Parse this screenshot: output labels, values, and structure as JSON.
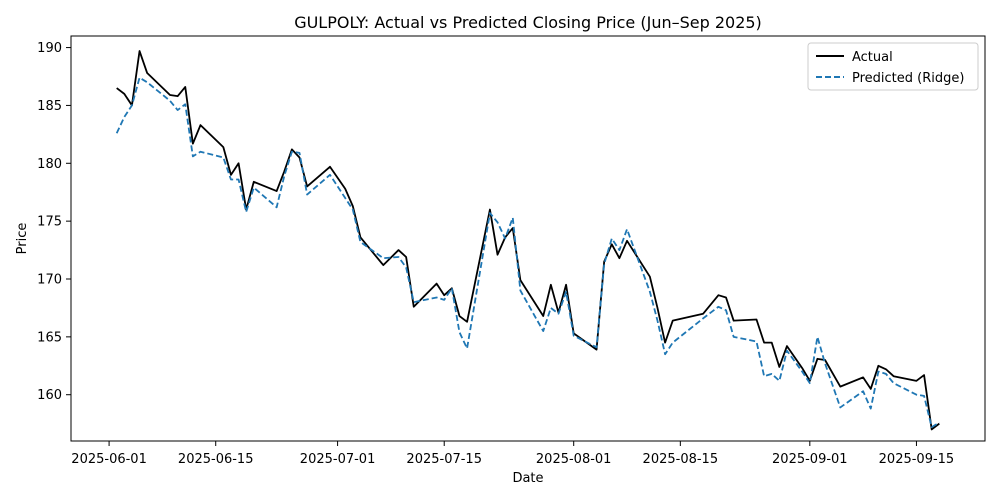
{
  "chart_data": {
    "type": "line",
    "title": "GULPOLY: Actual vs Predicted Closing Price (Jun–Sep 2025)",
    "xlabel": "Date",
    "ylabel": "Price",
    "xlim": [
      "2025-05-27",
      "2025-09-24"
    ],
    "ylim": [
      156.0,
      191.0
    ],
    "x_ticks": [
      "2025-06-01",
      "2025-06-15",
      "2025-07-01",
      "2025-07-15",
      "2025-08-01",
      "2025-08-15",
      "2025-09-01",
      "2025-09-15"
    ],
    "y_ticks": [
      160,
      165,
      170,
      175,
      180,
      185,
      190
    ],
    "legend_position": "top-right",
    "grid": false,
    "series": [
      {
        "name": "Actual",
        "color": "#000000",
        "style": "solid",
        "points": [
          [
            "2025-06-02",
            186.5
          ],
          [
            "2025-06-03",
            186.0
          ],
          [
            "2025-06-04",
            185.0
          ],
          [
            "2025-06-05",
            189.7
          ],
          [
            "2025-06-06",
            187.8
          ],
          [
            "2025-06-09",
            185.9
          ],
          [
            "2025-06-10",
            185.8
          ],
          [
            "2025-06-11",
            186.6
          ],
          [
            "2025-06-12",
            181.7
          ],
          [
            "2025-06-13",
            183.3
          ],
          [
            "2025-06-16",
            181.4
          ],
          [
            "2025-06-17",
            179.0
          ],
          [
            "2025-06-18",
            180.0
          ],
          [
            "2025-06-19",
            176.0
          ],
          [
            "2025-06-20",
            178.4
          ],
          [
            "2025-06-23",
            177.6
          ],
          [
            "2025-06-24",
            179.3
          ],
          [
            "2025-06-25",
            181.2
          ],
          [
            "2025-06-26",
            180.5
          ],
          [
            "2025-06-27",
            178.0
          ],
          [
            "2025-06-30",
            179.7
          ],
          [
            "2025-07-02",
            177.8
          ],
          [
            "2025-07-03",
            176.3
          ],
          [
            "2025-07-04",
            173.6
          ],
          [
            "2025-07-07",
            171.2
          ],
          [
            "2025-07-09",
            172.5
          ],
          [
            "2025-07-10",
            171.9
          ],
          [
            "2025-07-11",
            167.6
          ],
          [
            "2025-07-14",
            169.6
          ],
          [
            "2025-07-15",
            168.6
          ],
          [
            "2025-07-16",
            169.2
          ],
          [
            "2025-07-17",
            166.8
          ],
          [
            "2025-07-18",
            166.3
          ],
          [
            "2025-07-21",
            176.0
          ],
          [
            "2025-07-22",
            172.1
          ],
          [
            "2025-07-23",
            173.6
          ],
          [
            "2025-07-24",
            174.4
          ],
          [
            "2025-07-25",
            169.9
          ],
          [
            "2025-07-28",
            166.8
          ],
          [
            "2025-07-29",
            169.5
          ],
          [
            "2025-07-30",
            167.1
          ],
          [
            "2025-07-31",
            169.5
          ],
          [
            "2025-08-01",
            165.3
          ],
          [
            "2025-08-04",
            163.9
          ],
          [
            "2025-08-05",
            171.5
          ],
          [
            "2025-08-06",
            173.0
          ],
          [
            "2025-08-07",
            171.8
          ],
          [
            "2025-08-08",
            173.3
          ],
          [
            "2025-08-11",
            170.2
          ],
          [
            "2025-08-12",
            167.5
          ],
          [
            "2025-08-13",
            164.5
          ],
          [
            "2025-08-14",
            166.4
          ],
          [
            "2025-08-18",
            167.0
          ],
          [
            "2025-08-20",
            168.6
          ],
          [
            "2025-08-21",
            168.4
          ],
          [
            "2025-08-22",
            166.4
          ],
          [
            "2025-08-25",
            166.5
          ],
          [
            "2025-08-26",
            164.5
          ],
          [
            "2025-08-27",
            164.5
          ],
          [
            "2025-08-28",
            162.4
          ],
          [
            "2025-08-29",
            164.2
          ],
          [
            "2025-08-31",
            162.3
          ],
          [
            "2025-09-01",
            161.2
          ],
          [
            "2025-09-02",
            163.1
          ],
          [
            "2025-09-03",
            163.0
          ],
          [
            "2025-09-05",
            160.7
          ],
          [
            "2025-09-08",
            161.5
          ],
          [
            "2025-09-09",
            160.5
          ],
          [
            "2025-09-10",
            162.5
          ],
          [
            "2025-09-11",
            162.2
          ],
          [
            "2025-09-12",
            161.6
          ],
          [
            "2025-09-15",
            161.2
          ],
          [
            "2025-09-16",
            161.7
          ],
          [
            "2025-09-17",
            157.0
          ],
          [
            "2025-09-18",
            157.5
          ]
        ]
      },
      {
        "name": "Predicted (Ridge)",
        "color": "#1f77b4",
        "style": "dashed",
        "points": [
          [
            "2025-06-02",
            182.6
          ],
          [
            "2025-06-03",
            184.0
          ],
          [
            "2025-06-04",
            185.0
          ],
          [
            "2025-06-05",
            187.4
          ],
          [
            "2025-06-06",
            187.0
          ],
          [
            "2025-06-09",
            185.4
          ],
          [
            "2025-06-10",
            184.6
          ],
          [
            "2025-06-11",
            185.1
          ],
          [
            "2025-06-12",
            180.6
          ],
          [
            "2025-06-13",
            181.0
          ],
          [
            "2025-06-16",
            180.5
          ],
          [
            "2025-06-17",
            178.6
          ],
          [
            "2025-06-18",
            178.6
          ],
          [
            "2025-06-19",
            175.8
          ],
          [
            "2025-06-20",
            177.9
          ],
          [
            "2025-06-23",
            176.2
          ],
          [
            "2025-06-24",
            178.9
          ],
          [
            "2025-06-25",
            181.0
          ],
          [
            "2025-06-26",
            180.9
          ],
          [
            "2025-06-27",
            177.3
          ],
          [
            "2025-06-30",
            179.0
          ],
          [
            "2025-07-02",
            177.0
          ],
          [
            "2025-07-03",
            176.0
          ],
          [
            "2025-07-04",
            173.2
          ],
          [
            "2025-07-07",
            171.8
          ],
          [
            "2025-07-09",
            171.9
          ],
          [
            "2025-07-10",
            171.0
          ],
          [
            "2025-07-11",
            168.0
          ],
          [
            "2025-07-14",
            168.4
          ],
          [
            "2025-07-15",
            168.2
          ],
          [
            "2025-07-16",
            169.2
          ],
          [
            "2025-07-17",
            165.4
          ],
          [
            "2025-07-18",
            164.0
          ],
          [
            "2025-07-21",
            175.7
          ],
          [
            "2025-07-22",
            174.9
          ],
          [
            "2025-07-23",
            173.5
          ],
          [
            "2025-07-24",
            175.3
          ],
          [
            "2025-07-25",
            169.0
          ],
          [
            "2025-07-28",
            165.5
          ],
          [
            "2025-07-29",
            167.5
          ],
          [
            "2025-07-30",
            167.0
          ],
          [
            "2025-07-31",
            168.9
          ],
          [
            "2025-08-01",
            165.1
          ],
          [
            "2025-08-04",
            164.1
          ],
          [
            "2025-08-05",
            171.3
          ],
          [
            "2025-08-06",
            173.5
          ],
          [
            "2025-08-07",
            172.5
          ],
          [
            "2025-08-08",
            174.3
          ],
          [
            "2025-08-11",
            168.9
          ],
          [
            "2025-08-12",
            166.4
          ],
          [
            "2025-08-13",
            163.5
          ],
          [
            "2025-08-14",
            164.5
          ],
          [
            "2025-08-18",
            166.6
          ],
          [
            "2025-08-20",
            167.6
          ],
          [
            "2025-08-21",
            167.3
          ],
          [
            "2025-08-22",
            165.0
          ],
          [
            "2025-08-25",
            164.6
          ],
          [
            "2025-08-26",
            161.6
          ],
          [
            "2025-08-27",
            161.8
          ],
          [
            "2025-08-28",
            161.2
          ],
          [
            "2025-08-29",
            163.8
          ],
          [
            "2025-08-31",
            162.0
          ],
          [
            "2025-09-01",
            161.0
          ],
          [
            "2025-09-02",
            165.0
          ],
          [
            "2025-09-03",
            162.7
          ],
          [
            "2025-09-05",
            158.9
          ],
          [
            "2025-09-08",
            160.3
          ],
          [
            "2025-09-09",
            158.8
          ],
          [
            "2025-09-10",
            162.0
          ],
          [
            "2025-09-11",
            161.8
          ],
          [
            "2025-09-12",
            161.0
          ],
          [
            "2025-09-15",
            160.0
          ],
          [
            "2025-09-16",
            159.9
          ],
          [
            "2025-09-17",
            157.2
          ],
          [
            "2025-09-18",
            157.6
          ]
        ]
      }
    ]
  }
}
